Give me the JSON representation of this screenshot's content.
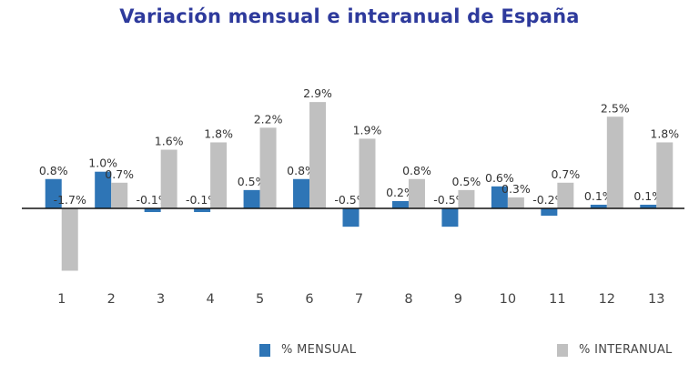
{
  "chart_data": {
    "type": "bar",
    "title": "Variación mensual e interanual de España",
    "categories": [
      "1",
      "2",
      "3",
      "4",
      "5",
      "6",
      "7",
      "8",
      "9",
      "10",
      "11",
      "12",
      "13"
    ],
    "series": [
      {
        "name": "% MENSUAL",
        "color": "#2e75b6",
        "values": [
          0.8,
          1.0,
          -0.1,
          -0.1,
          0.5,
          0.8,
          -0.5,
          0.2,
          -0.5,
          0.6,
          -0.2,
          0.1,
          0.1
        ],
        "labels": [
          "0.8%",
          "1.0%",
          "-0.1%",
          "-0.1%",
          "0.5%",
          "0.8%",
          "-0.5%",
          "0.2%",
          "-0.5%",
          "0.6%",
          "-0.2%",
          "0.1%",
          "0.1%"
        ]
      },
      {
        "name": "% INTERANUAL",
        "color": "#c0c0c0",
        "values": [
          -1.7,
          0.7,
          1.6,
          1.8,
          2.2,
          2.9,
          1.9,
          0.8,
          0.5,
          0.3,
          0.7,
          2.5,
          1.8
        ],
        "labels": [
          "-1.7%",
          "0.7%",
          "1.6%",
          "1.8%",
          "2.2%",
          "2.9%",
          "1.9%",
          "0.8%",
          "0.5%",
          "0.3%",
          "0.7%",
          "2.5%",
          "1.8%"
        ]
      }
    ],
    "xlabel": "",
    "ylabel": "",
    "ylim": [
      -2.0,
      3.5
    ],
    "grid": false,
    "legend_position": "bottom"
  }
}
